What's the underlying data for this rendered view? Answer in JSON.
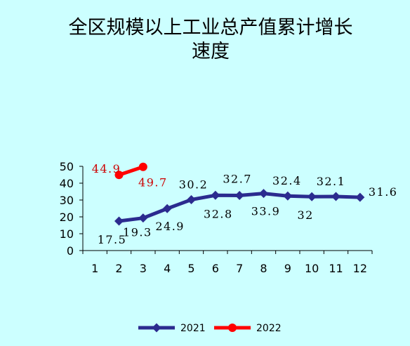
{
  "chart_data": {
    "type": "line",
    "title_line1": "全区规模以上工业总产值累计增长",
    "title_line2": "速度",
    "x": [
      "1",
      "2",
      "3",
      "4",
      "5",
      "6",
      "7",
      "8",
      "9",
      "10",
      "11",
      "12"
    ],
    "ylim": [
      0,
      50
    ],
    "yticks": [
      "0",
      "10",
      "20",
      "30",
      "40",
      "50"
    ],
    "series": [
      {
        "name": "2021",
        "color": "#2b2b8f",
        "marker": "diamond",
        "points": [
          {
            "x": 2,
            "y": 17.5,
            "label": "17.5"
          },
          {
            "x": 3,
            "y": 19.3,
            "label": "19.3"
          },
          {
            "x": 4,
            "y": 24.9,
            "label": "24.9"
          },
          {
            "x": 5,
            "y": 30.2,
            "label": "30.2"
          },
          {
            "x": 6,
            "y": 32.8,
            "label": "32.8"
          },
          {
            "x": 7,
            "y": 32.7,
            "label": "32.7"
          },
          {
            "x": 8,
            "y": 33.9,
            "label": "33.9"
          },
          {
            "x": 9,
            "y": 32.4,
            "label": "32.4"
          },
          {
            "x": 10,
            "y": 32,
            "label": "32"
          },
          {
            "x": 11,
            "y": 32.1,
            "label": "32.1"
          },
          {
            "x": 12,
            "y": 31.6,
            "label": "31.6"
          }
        ]
      },
      {
        "name": "2022",
        "color": "#ff0000",
        "marker": "circle",
        "points": [
          {
            "x": 2,
            "y": 44.9,
            "label": "44.9"
          },
          {
            "x": 3,
            "y": 49.7,
            "label": "49.7"
          }
        ]
      }
    ],
    "legend_position": "bottom",
    "grid": false
  }
}
